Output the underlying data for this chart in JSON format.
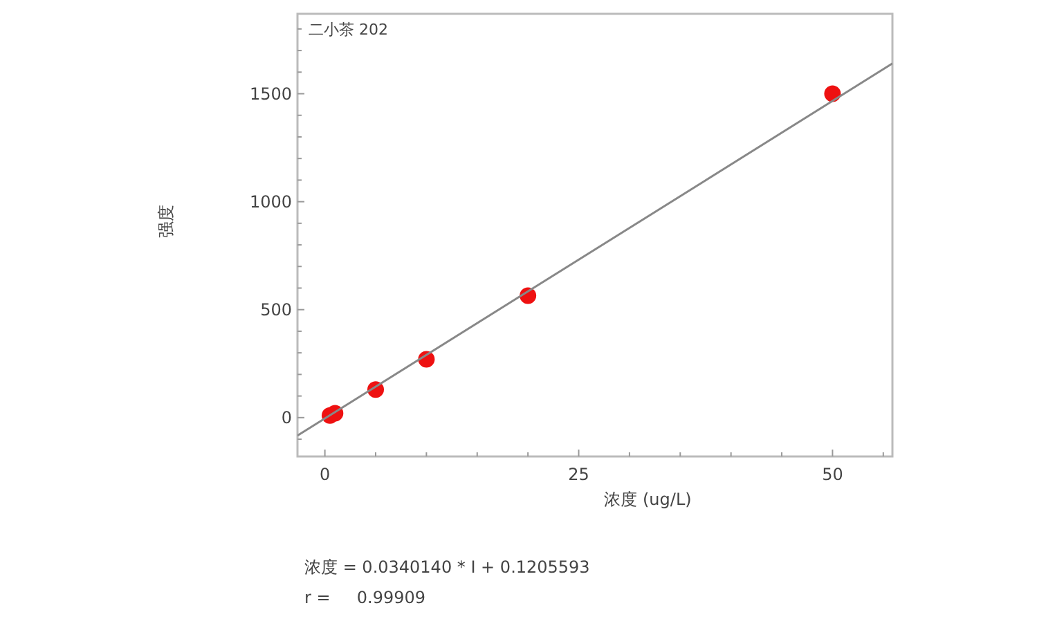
{
  "chart_data": {
    "type": "scatter",
    "title": "二小茶 202",
    "xlabel": "浓度 (ug/L)",
    "ylabel": "强度",
    "xlim": [
      -2.7,
      55.9
    ],
    "ylim": [
      -180,
      1870
    ],
    "xticks": [
      0,
      {
        "value": 5,
        "label": null
      },
      {
        "value": 10,
        "label": null
      },
      {
        "value": 15,
        "label": null
      },
      {
        "value": 20,
        "label": null
      },
      25,
      {
        "value": 30,
        "label": null
      },
      {
        "value": 35,
        "label": null
      },
      {
        "value": 40,
        "label": null
      },
      {
        "value": 45,
        "label": null
      },
      50,
      {
        "value": 55,
        "label": null
      }
    ],
    "yticks": [
      {
        "value": -100,
        "label": null
      },
      0,
      {
        "value": 100,
        "label": null
      },
      {
        "value": 200,
        "label": null
      },
      {
        "value": 300,
        "label": null
      },
      {
        "value": 400,
        "label": null
      },
      500,
      {
        "value": 600,
        "label": null
      },
      {
        "value": 700,
        "label": null
      },
      {
        "value": 800,
        "label": null
      },
      {
        "value": 900,
        "label": null
      },
      1000,
      {
        "value": 1100,
        "label": null
      },
      {
        "value": 1200,
        "label": null
      },
      {
        "value": 1300,
        "label": null
      },
      {
        "value": 1400,
        "label": null
      },
      1500,
      {
        "value": 1600,
        "label": null
      },
      {
        "value": 1700,
        "label": null
      },
      {
        "value": 1800,
        "label": null
      }
    ],
    "grid": false,
    "series": [
      {
        "marker": "circle",
        "color": "#ee1111",
        "x": [
          0.5,
          1,
          5,
          10,
          20,
          50
        ],
        "values": [
          10,
          20,
          130,
          270,
          565,
          1500
        ]
      },
      {
        "type": "line",
        "color": "#888888",
        "x": [
          -2.7,
          55.9
        ],
        "values": [
          -83,
          1640
        ]
      }
    ],
    "annotations": [
      "浓度 = 0.0340140 * I + 0.1205593",
      "r =     0.99909"
    ]
  }
}
